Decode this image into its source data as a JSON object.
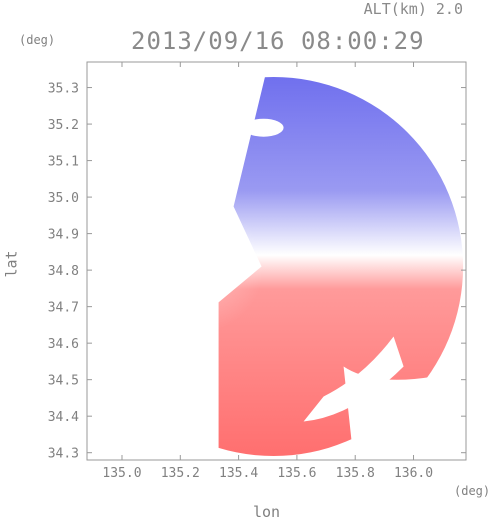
{
  "chart_data": {
    "type": "heatmap",
    "title": "2013/09/16 08:00:29",
    "subtitle": "ALT(km) 2.0",
    "xlabel": "lon",
    "ylabel": "lat",
    "x_unit": "(deg)",
    "y_unit": "(deg)",
    "xlim": [
      134.88,
      136.18
    ],
    "ylim": [
      34.28,
      35.37
    ],
    "x_ticks": [
      135.0,
      135.2,
      135.4,
      135.6,
      135.8,
      136.0
    ],
    "y_ticks": [
      34.3,
      34.4,
      34.5,
      34.6,
      34.7,
      34.8,
      34.9,
      35.0,
      35.1,
      35.2,
      35.3
    ],
    "x_tick_labels": [
      "135.0",
      "135.2",
      "135.4",
      "135.6",
      "135.8",
      "136.0"
    ],
    "y_tick_labels": [
      "34.3",
      "34.4",
      "34.5",
      "34.6",
      "34.7",
      "34.8",
      "34.9",
      "35.0",
      "35.1",
      "35.2",
      "35.3"
    ],
    "center": [
      135.52,
      34.81
    ],
    "range_edge": [
      136.17,
      34.81
    ],
    "colors": {
      "toward": "#7070ee",
      "away": "#ff6f6f",
      "zero": "#ffffff",
      "axis": "#999999"
    }
  }
}
